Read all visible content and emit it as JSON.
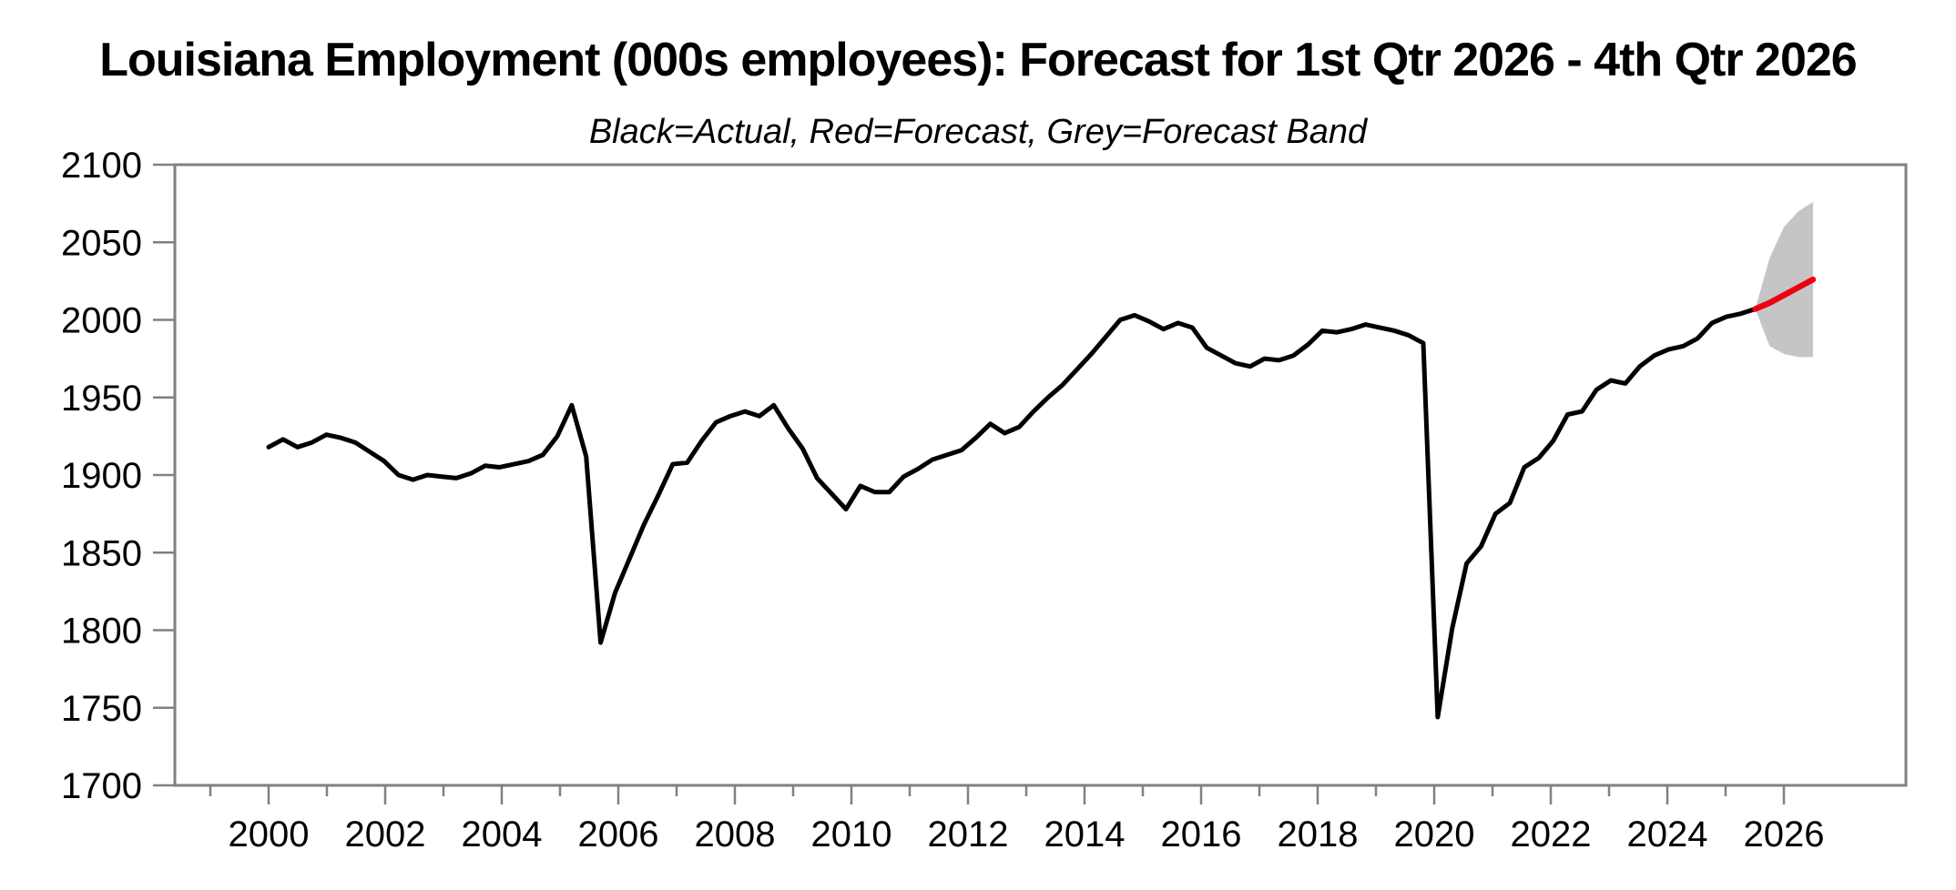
{
  "chart_data": {
    "type": "line",
    "title": "Louisiana Employment (000s employees): Forecast for 1st Qtr 2026 - 4th Qtr 2026",
    "subtitle": "Black=Actual, Red=Forecast, Grey=Forecast Band",
    "ylabel": "",
    "xlabel": "",
    "ylim": [
      1700,
      2100
    ],
    "yticks": [
      1700,
      1750,
      1800,
      1850,
      1900,
      1950,
      2000,
      2050,
      2100
    ],
    "xticks_major": [
      2000,
      2002,
      2004,
      2006,
      2008,
      2010,
      2012,
      2014,
      2016,
      2018,
      2020,
      2022,
      2024,
      2026
    ],
    "xticks_minor": [
      1999,
      2001,
      2003,
      2005,
      2007,
      2009,
      2011,
      2013,
      2015,
      2017,
      2019,
      2021,
      2023,
      2025
    ],
    "grid": false,
    "legend_position": "none (legend encoded in subtitle)",
    "colors": {
      "actual": "#000000",
      "forecast": "#ee0011",
      "band": "#c5c5c5",
      "axis": "#808080",
      "text": "#000000",
      "background": "#ffffff"
    },
    "series": [
      {
        "name": "Actual",
        "color_key": "actual",
        "start_quarter": "2000Q1",
        "frequency": "quarterly",
        "values": [
          1918,
          1923,
          1918,
          1921,
          1926,
          1924,
          1921,
          1915,
          1909,
          1900,
          1897,
          1900,
          1899,
          1898,
          1901,
          1906,
          1905,
          1907,
          1909,
          1913,
          1925,
          1945,
          1912,
          1792,
          1824,
          1846,
          1868,
          1887,
          1907,
          1908,
          1922,
          1934,
          1938,
          1941,
          1938,
          1945,
          1930,
          1917,
          1898,
          1888,
          1878,
          1893,
          1889,
          1889,
          1899,
          1904,
          1910,
          1913,
          1916,
          1924,
          1933,
          1927,
          1931,
          1941,
          1950,
          1958,
          1968,
          1978,
          1989,
          2000,
          2003,
          1999,
          1994,
          1998,
          1995,
          1982,
          1977,
          1972,
          1970,
          1975,
          1974,
          1977,
          1984,
          1993,
          1992,
          1994,
          1997,
          1995,
          1993,
          1990,
          1985,
          1744,
          1801,
          1843,
          1854,
          1875,
          1882,
          1905,
          1911,
          1922,
          1939,
          1941,
          1955,
          1961,
          1959,
          1970,
          1977,
          1981,
          1983,
          1988,
          1998,
          2002,
          2004,
          2007
        ]
      },
      {
        "name": "Forecast",
        "color_key": "forecast",
        "start_quarter": "2025Q4",
        "frequency": "quarterly",
        "values": [
          2007,
          2011,
          2016,
          2021,
          2026
        ]
      }
    ],
    "band": {
      "name": "Forecast Band",
      "color_key": "band",
      "quarters": [
        "2025Q4",
        "2026Q1",
        "2026Q2",
        "2026Q3",
        "2026Q4"
      ],
      "top": [
        2007,
        2040,
        2060,
        2070,
        2076
      ],
      "bottom": [
        2007,
        1983,
        1978,
        1976,
        1976
      ]
    }
  }
}
